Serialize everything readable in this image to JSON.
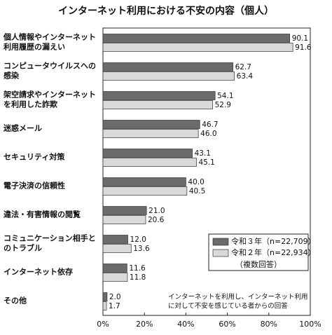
{
  "chart_data": {
    "type": "hbar",
    "title": "インターネット利用における不安の内容（個人）",
    "categories": [
      [
        "個人情報やインターネット",
        "利用履歴の漏えい"
      ],
      [
        "コンピュータウイルスへの",
        "感染"
      ],
      [
        "架空請求やインターネット",
        "を利用した詐欺"
      ],
      [
        "迷惑メール"
      ],
      [
        "セキュリティ対策"
      ],
      [
        "電子決済の信頼性"
      ],
      [
        "違法・有害情報の閲覧"
      ],
      [
        "コミュニケーション相手と",
        "のトラブル"
      ],
      [
        "インターネット依存"
      ],
      [
        "その他"
      ]
    ],
    "series": [
      {
        "name": "令和３年（n=22,709）",
        "color": "#6b6b6b",
        "values": [
          90.1,
          62.7,
          54.1,
          46.7,
          43.1,
          40.0,
          21.0,
          12.0,
          11.6,
          2.0
        ],
        "value_labels": [
          "90.1",
          "62.7",
          "54.1",
          "46.7",
          "43.1",
          "40.0",
          "21.0",
          "12.0",
          "11.6",
          "2.0"
        ]
      },
      {
        "name": "令和２年（n=22,934）",
        "color": "#d9d9d9",
        "values": [
          91.6,
          63.4,
          52.9,
          46.0,
          45.1,
          40.5,
          20.6,
          13.6,
          11.8,
          1.7
        ],
        "value_labels": [
          "91.6",
          "63.4",
          "52.9",
          "46.0",
          "45.1",
          "40.5",
          "20.6",
          "13.6",
          "11.8",
          "1.7"
        ]
      }
    ],
    "legend_note": "（複数回答）",
    "annotation": [
      "インターネットを利用し、インターネット利用",
      "に対して不安を感じている者からの回答"
    ],
    "xlim": [
      0,
      100
    ],
    "xticks": [
      {
        "value": 0,
        "label": "0%"
      },
      {
        "value": 20,
        "label": "20%"
      },
      {
        "value": 40,
        "label": "40%"
      },
      {
        "value": 60,
        "label": "60%"
      },
      {
        "value": 80,
        "label": "80%"
      },
      {
        "value": 100,
        "label": "100%"
      }
    ]
  }
}
